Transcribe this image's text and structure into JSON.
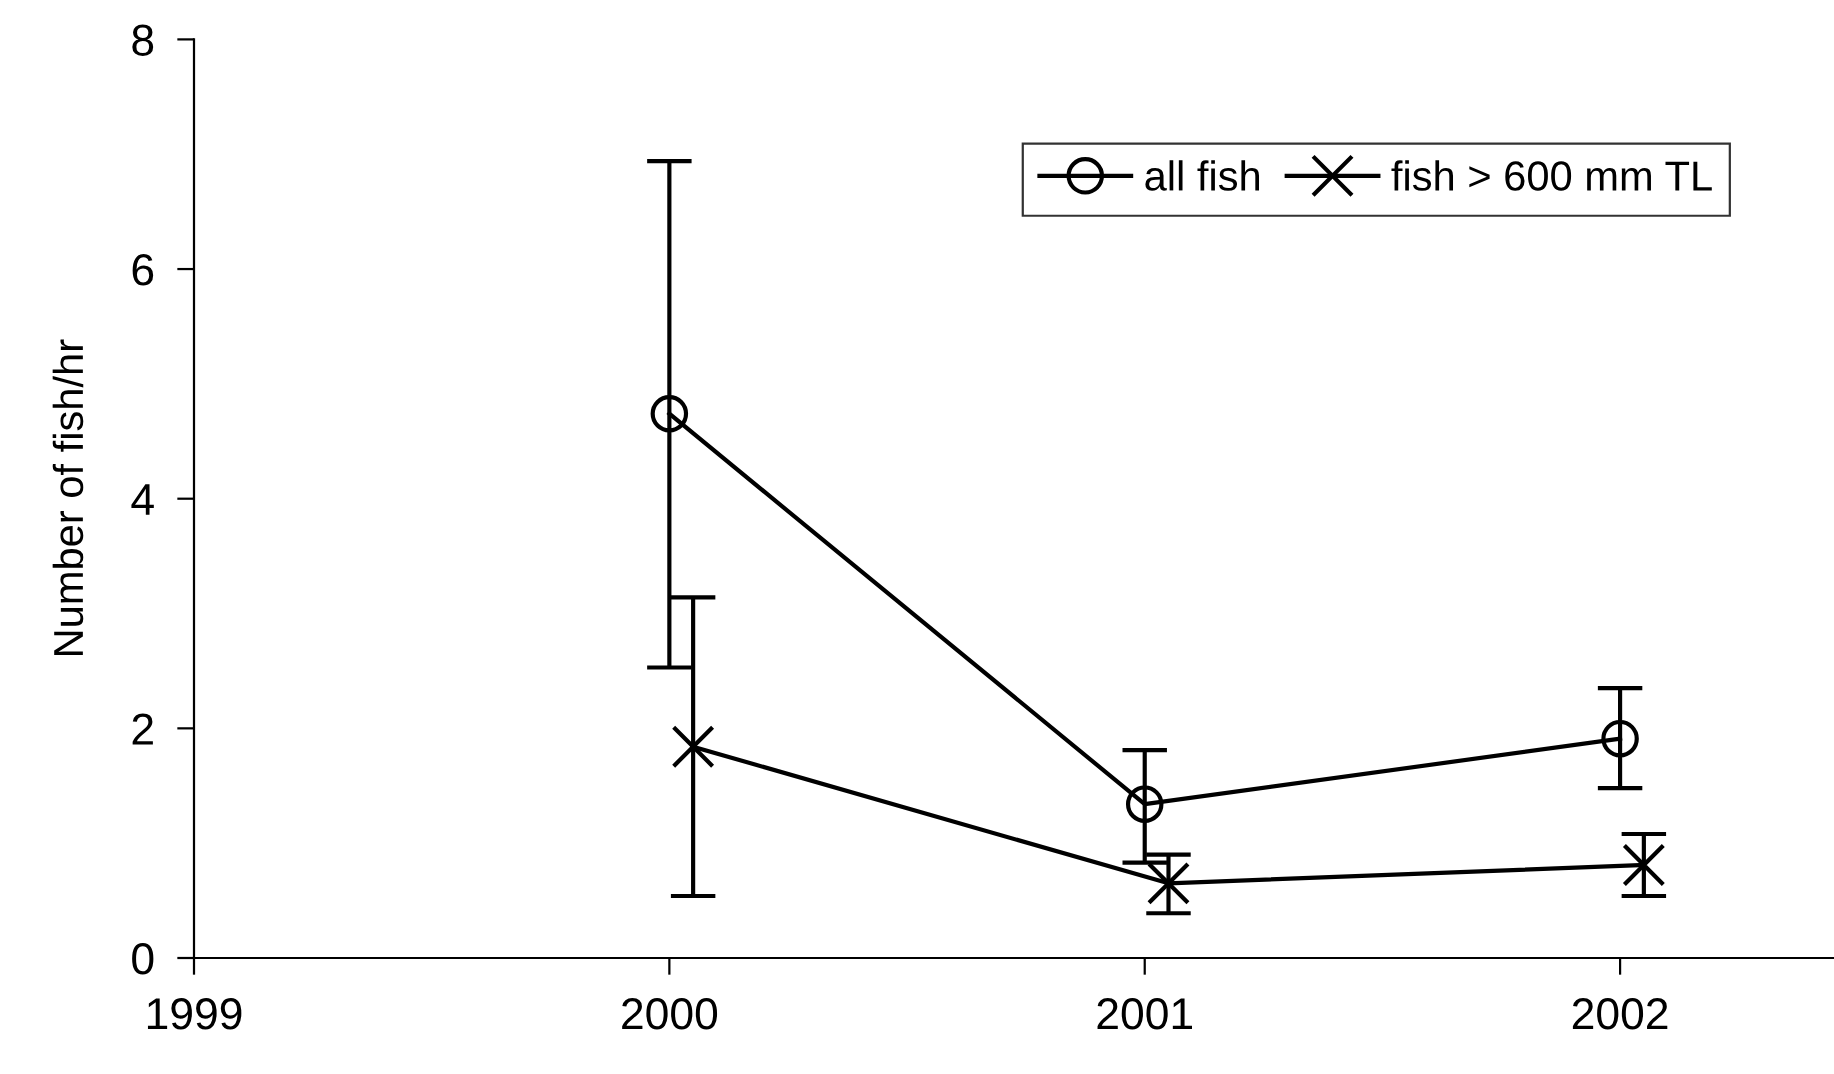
{
  "chart_data": {
    "type": "line",
    "ylabel": "Number of fish/hr",
    "xlim": [
      1999,
      2002.45
    ],
    "xticks": [
      1999,
      2000,
      2001,
      2002
    ],
    "ylim": [
      0,
      8
    ],
    "yticks": [
      0,
      2,
      4,
      6,
      8
    ],
    "grid": false,
    "legend": "top right",
    "line_style": "solid",
    "series": [
      {
        "name": "all fish",
        "color": "#000000",
        "marker": "circle",
        "x": [
          2000,
          2001,
          2002
        ],
        "values": [
          4.74,
          1.34,
          1.91
        ],
        "errors": [
          [
            2.53,
            6.94
          ],
          [
            0.83,
            1.81
          ],
          [
            1.48,
            2.35
          ]
        ]
      },
      {
        "name": "fish > 600 mm TL",
        "color": "#000000",
        "marker": "cross",
        "x": [
          2000.05,
          2001.05,
          2002.05
        ],
        "values": [
          1.84,
          0.65,
          0.81
        ],
        "errors": [
          [
            0.54,
            3.14
          ],
          [
            0.39,
            0.9
          ],
          [
            0.54,
            1.08
          ]
        ]
      }
    ]
  }
}
